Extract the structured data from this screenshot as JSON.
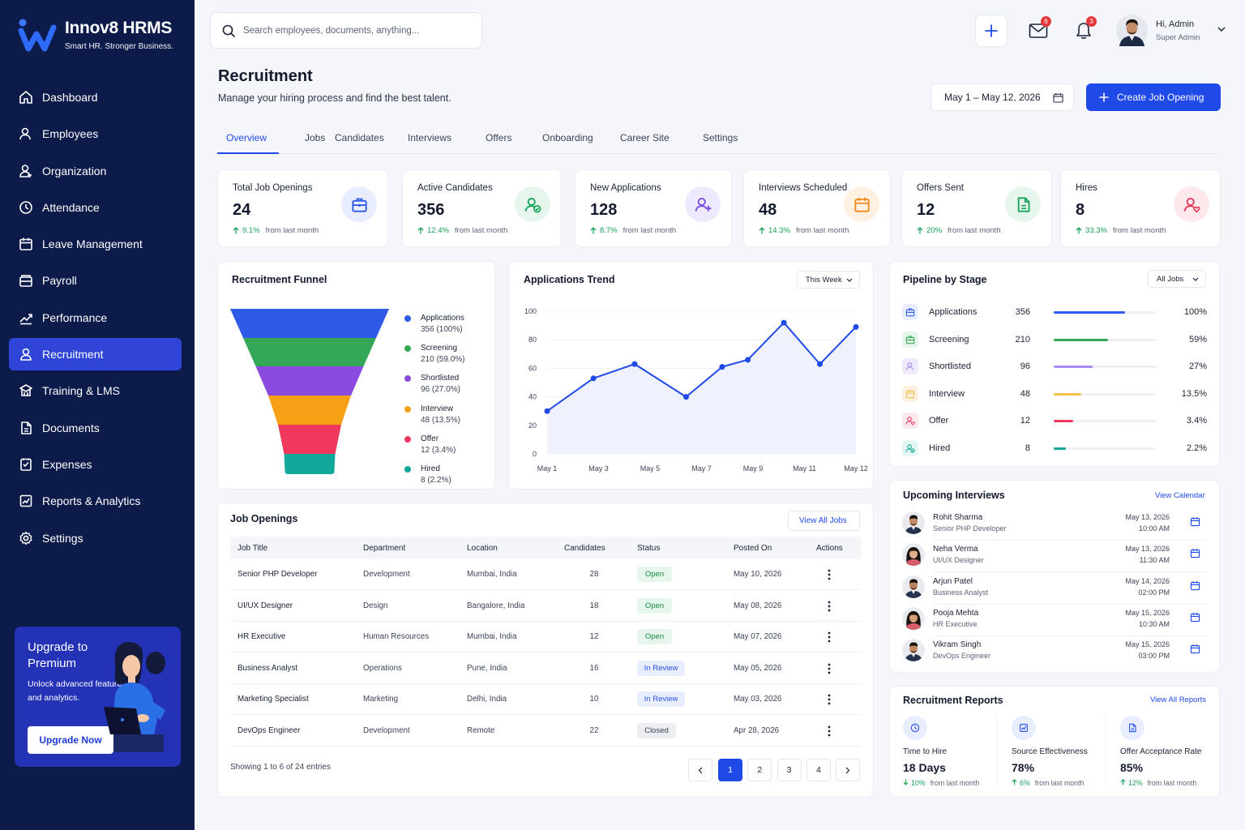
{
  "brand": {
    "name": "Innov8 HRMS",
    "tagline": "Smart HR. Stronger Business."
  },
  "nav": [
    {
      "label": "Dashboard",
      "icon": "home-icon"
    },
    {
      "label": "Employees",
      "icon": "users-icon"
    },
    {
      "label": "Organization",
      "icon": "organization-icon"
    },
    {
      "label": "Attendance",
      "icon": "clock-icon"
    },
    {
      "label": "Leave Management",
      "icon": "calendar-icon"
    },
    {
      "label": "Payroll",
      "icon": "wallet-icon"
    },
    {
      "label": "Performance",
      "icon": "trend-icon"
    },
    {
      "label": "Recruitment",
      "icon": "recruit-icon",
      "active": true
    },
    {
      "label": "Training & LMS",
      "icon": "training-icon"
    },
    {
      "label": "Documents",
      "icon": "document-icon"
    },
    {
      "label": "Expenses",
      "icon": "receipt-icon"
    },
    {
      "label": "Reports & Analytics",
      "icon": "report-icon"
    },
    {
      "label": "Settings",
      "icon": "gear-icon"
    }
  ],
  "upgrade": {
    "title": "Upgrade to Premium",
    "subtitle": "Unlock advanced features and analytics.",
    "button": "Upgrade Now"
  },
  "header": {
    "search_placeholder": "Search employees, documents, anything...",
    "mail_count": "6",
    "notif_count": "3",
    "user_greeting": "Hi, Admin",
    "user_role": "Super Admin"
  },
  "page": {
    "title": "Recruitment",
    "subtitle": "Manage your hiring process and find the best talent.",
    "date_range": "May 1 – May 12, 2026",
    "create_label": "Create Job Opening"
  },
  "tabs": [
    "Overview",
    "Jobs",
    "Candidates",
    "Interviews",
    "Offers",
    "Onboarding",
    "Career Site",
    "Settings"
  ],
  "kpis": [
    {
      "label": "Total Job Openings",
      "value": "24",
      "pct": "9.1%",
      "note": "from last month",
      "icon": "briefcase-icon",
      "color": "#2f5ae8",
      "bg": "#e8eeff"
    },
    {
      "label": "Active Candidates",
      "value": "356",
      "pct": "12.4%",
      "note": "from last month",
      "icon": "user-check-icon",
      "color": "#19a35a",
      "bg": "#e6f6ec"
    },
    {
      "label": "New Applications",
      "value": "128",
      "pct": "8.7%",
      "note": "from last month",
      "icon": "user-plus-icon",
      "color": "#7a4ce0",
      "bg": "#efe9fd"
    },
    {
      "label": "Interviews Scheduled",
      "value": "48",
      "pct": "14.3%",
      "note": "from last month",
      "icon": "calendar-icon",
      "color": "#f08a1c",
      "bg": "#fff1e2"
    },
    {
      "label": "Offers Sent",
      "value": "12",
      "pct": "20%",
      "note": "from last month",
      "icon": "document-icon",
      "color": "#19a35a",
      "bg": "#e6f6ec"
    },
    {
      "label": "Hires",
      "value": "8",
      "pct": "33.3%",
      "note": "from last month",
      "icon": "user-heart-icon",
      "color": "#e53958",
      "bg": "#fde8ec"
    }
  ],
  "funnel": {
    "title": "Recruitment Funnel",
    "stages": [
      {
        "name": "Applications",
        "value": "356 (100%)",
        "color": "#2f5ae8"
      },
      {
        "name": "Screening",
        "value": "210 (59.0%)",
        "color": "#34a857"
      },
      {
        "name": "Shortlisted",
        "value": "96 (27.0%)",
        "color": "#8b4ae0"
      },
      {
        "name": "Interview",
        "value": "48 (13.5%)",
        "color": "#f6a115"
      },
      {
        "name": "Offer",
        "value": "12 (3.4%)",
        "color": "#f0385f"
      },
      {
        "name": "Hired",
        "value": "8 (2.2%)",
        "color": "#12a89a"
      }
    ]
  },
  "trend": {
    "title": "Applications Trend",
    "filter": "This Week"
  },
  "chart_data": {
    "type": "line",
    "x": [
      "May 1",
      "May 3",
      "May 5",
      "May 7",
      "May 9",
      "May 11",
      "May 12"
    ],
    "points": [
      [
        0,
        30
      ],
      [
        0.9,
        53
      ],
      [
        1.7,
        63
      ],
      [
        2.7,
        40
      ],
      [
        3.4,
        61
      ],
      [
        3.9,
        66
      ],
      [
        4.6,
        92
      ],
      [
        5.3,
        63
      ],
      [
        6,
        89
      ]
    ],
    "yticks": [
      0,
      20,
      40,
      60,
      80,
      100
    ],
    "ylim": [
      0,
      100
    ],
    "color": "#1f4ae8"
  },
  "pipeline": {
    "title": "Pipeline by Stage",
    "filter": "All Jobs",
    "rows": [
      {
        "name": "Applications",
        "count": "356",
        "pct": "100%",
        "frac": 0.7,
        "color": "#2f5ae8",
        "bg": "#e8eeff"
      },
      {
        "name": "Screening",
        "count": "210",
        "pct": "59%",
        "frac": 0.53,
        "color": "#34a857",
        "bg": "#e6f6ec"
      },
      {
        "name": "Shortlisted",
        "count": "96",
        "pct": "27%",
        "frac": 0.38,
        "color": "#a98bf0",
        "bg": "#efe9fd"
      },
      {
        "name": "Interview",
        "count": "48",
        "pct": "13.5%",
        "frac": 0.27,
        "color": "#f6c14a",
        "bg": "#fff1e2"
      },
      {
        "name": "Offer",
        "count": "12",
        "pct": "3.4%",
        "frac": 0.19,
        "color": "#f0385f",
        "bg": "#fde8ec"
      },
      {
        "name": "Hired",
        "count": "8",
        "pct": "2.2%",
        "frac": 0.12,
        "color": "#12a89a",
        "bg": "#e3f6f3"
      }
    ]
  },
  "jobs": {
    "title": "Job Openings",
    "view_all": "View All Jobs",
    "columns": [
      "Job Title",
      "Department",
      "Location",
      "Candidates",
      "Status",
      "Posted On",
      "Actions"
    ],
    "rows": [
      {
        "title": "Senior PHP Developer",
        "dept": "Development",
        "loc": "Mumbai, India",
        "cand": "28",
        "status": "Open",
        "posted": "May 10, 2026"
      },
      {
        "title": "UI/UX Designer",
        "dept": "Design",
        "loc": "Bangalore, India",
        "cand": "18",
        "status": "Open",
        "posted": "May 08, 2026"
      },
      {
        "title": "HR Executive",
        "dept": "Human Resources",
        "loc": "Mumbai, India",
        "cand": "12",
        "status": "Open",
        "posted": "May 07, 2026"
      },
      {
        "title": "Business Analyst",
        "dept": "Operations",
        "loc": "Pune, India",
        "cand": "16",
        "status": "In Review",
        "posted": "May 05, 2026"
      },
      {
        "title": "Marketing Specialist",
        "dept": "Marketing",
        "loc": "Delhi, India",
        "cand": "10",
        "status": "In Review",
        "posted": "May 03, 2026"
      },
      {
        "title": "DevOps Engineer",
        "dept": "Development",
        "loc": "Remote",
        "cand": "22",
        "status": "Closed",
        "posted": "Apr 28, 2026"
      }
    ],
    "showing": "Showing 1 to 6 of 24 entries",
    "pages": [
      "1",
      "2",
      "3",
      "4"
    ]
  },
  "interviews": {
    "title": "Upcoming Interviews",
    "view": "View Calendar",
    "rows": [
      {
        "name": "Rohit Sharma",
        "role": "Senior PHP Developer",
        "date": "May 13, 2026",
        "time": "10:00 AM",
        "gender": "m"
      },
      {
        "name": "Neha Verma",
        "role": "UI/UX Designer",
        "date": "May 13, 2026",
        "time": "11:30 AM",
        "gender": "f"
      },
      {
        "name": "Arjun Patel",
        "role": "Business Analyst",
        "date": "May 14, 2026",
        "time": "02:00 PM",
        "gender": "m"
      },
      {
        "name": "Pooja Mehta",
        "role": "HR Executive",
        "date": "May 15, 2026",
        "time": "10:30 AM",
        "gender": "f"
      },
      {
        "name": "Vikram Singh",
        "role": "DevOps Engineer",
        "date": "May 15, 2026",
        "time": "03:00 PM",
        "gender": "m"
      }
    ]
  },
  "reports": {
    "title": "Recruitment Reports",
    "view": "View All Reports",
    "items": [
      {
        "label": "Time to Hire",
        "value": "18 Days",
        "pct": "10%",
        "note": "from last month",
        "dir": "down"
      },
      {
        "label": "Source Effectiveness",
        "value": "78%",
        "pct": "6%",
        "note": "from last month",
        "dir": "up"
      },
      {
        "label": "Offer Acceptance Rate",
        "value": "85%",
        "pct": "12%",
        "note": "from last month",
        "dir": "up"
      }
    ]
  }
}
